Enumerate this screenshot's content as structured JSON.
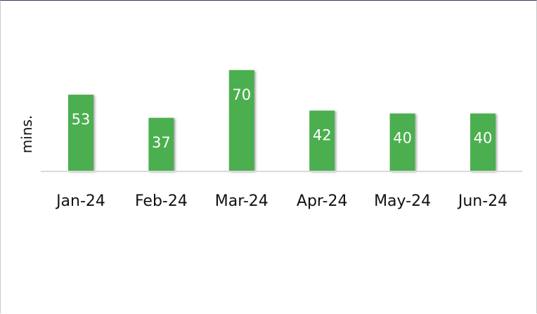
{
  "chart_data": {
    "type": "bar",
    "categories": [
      "Jan-24",
      "Feb-24",
      "Mar-24",
      "Apr-24",
      "May-24",
      "Jun-24"
    ],
    "values": [
      53,
      37,
      70,
      42,
      40,
      40
    ],
    "title": "",
    "xlabel": "",
    "ylabel": "mins.",
    "data_labels": true,
    "grid": false,
    "legend": "none",
    "colors": {
      "bar": "#4caf50",
      "data_label": "#ffffff",
      "axis_line": "#d9d9d9"
    }
  }
}
